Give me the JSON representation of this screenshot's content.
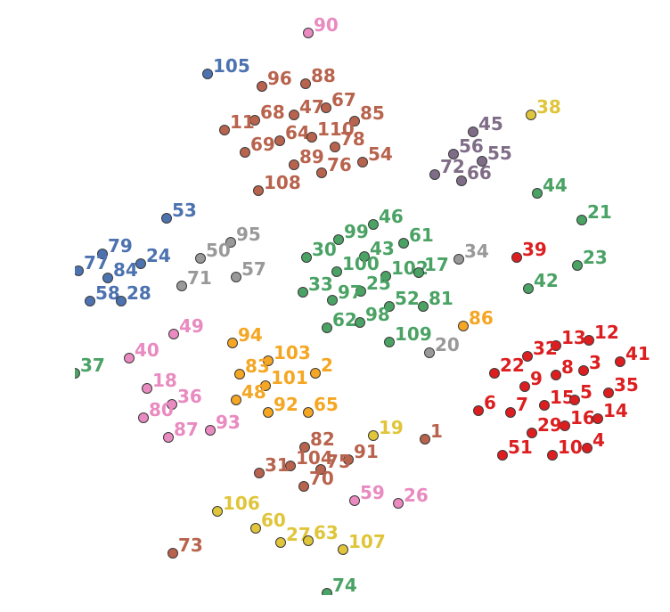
{
  "chart_data": {
    "type": "scatter",
    "title": "",
    "xlabel": "",
    "ylabel": "",
    "xlim": [
      0,
      752
    ],
    "ylim": [
      0,
      687
    ],
    "y_inverted": true,
    "grid": false,
    "axes_visible": false,
    "legend": "none",
    "clusters": {
      "sienna": "#b8634d",
      "blue": "#4c72b0",
      "green": "#4aa264",
      "gray": "#999999",
      "purple": "#7f6d87",
      "red": "#dc1e20",
      "orange": "#f5a623",
      "yellow": "#e0c53a",
      "pink": "#e98ac0"
    },
    "points": [
      {
        "label": "90",
        "x": 346,
        "y": 37,
        "cluster": "pink"
      },
      {
        "label": "105",
        "x": 233,
        "y": 83,
        "cluster": "blue"
      },
      {
        "label": "96",
        "x": 294,
        "y": 97,
        "cluster": "sienna"
      },
      {
        "label": "88",
        "x": 343,
        "y": 94,
        "cluster": "sienna"
      },
      {
        "label": "68",
        "x": 286,
        "y": 135,
        "cluster": "sienna"
      },
      {
        "label": "47",
        "x": 330,
        "y": 129,
        "cluster": "sienna"
      },
      {
        "label": "67",
        "x": 366,
        "y": 121,
        "cluster": "sienna"
      },
      {
        "label": "85",
        "x": 398,
        "y": 136,
        "cluster": "sienna"
      },
      {
        "label": "11",
        "x": 252,
        "y": 146,
        "cluster": "sienna"
      },
      {
        "label": "64",
        "x": 314,
        "y": 158,
        "cluster": "sienna"
      },
      {
        "label": "110",
        "x": 350,
        "y": 154,
        "cluster": "sienna"
      },
      {
        "label": "69",
        "x": 275,
        "y": 171,
        "cluster": "sienna"
      },
      {
        "label": "78",
        "x": 376,
        "y": 165,
        "cluster": "sienna"
      },
      {
        "label": "89",
        "x": 330,
        "y": 185,
        "cluster": "sienna"
      },
      {
        "label": "76",
        "x": 361,
        "y": 194,
        "cluster": "sienna"
      },
      {
        "label": "54",
        "x": 407,
        "y": 182,
        "cluster": "sienna"
      },
      {
        "label": "108",
        "x": 290,
        "y": 214,
        "cluster": "sienna"
      },
      {
        "label": "38",
        "x": 596,
        "y": 129,
        "cluster": "yellow"
      },
      {
        "label": "45",
        "x": 531,
        "y": 148,
        "cluster": "purple"
      },
      {
        "label": "56",
        "x": 509,
        "y": 173,
        "cluster": "purple"
      },
      {
        "label": "55",
        "x": 541,
        "y": 181,
        "cluster": "purple"
      },
      {
        "label": "72",
        "x": 488,
        "y": 196,
        "cluster": "purple"
      },
      {
        "label": "66",
        "x": 518,
        "y": 203,
        "cluster": "purple"
      },
      {
        "label": "44",
        "x": 603,
        "y": 217,
        "cluster": "green"
      },
      {
        "label": "21",
        "x": 653,
        "y": 247,
        "cluster": "green"
      },
      {
        "label": "53",
        "x": 187,
        "y": 245,
        "cluster": "blue"
      },
      {
        "label": "95",
        "x": 259,
        "y": 272,
        "cluster": "gray"
      },
      {
        "label": "50",
        "x": 225,
        "y": 290,
        "cluster": "gray"
      },
      {
        "label": "79",
        "x": 115,
        "y": 285,
        "cluster": "blue"
      },
      {
        "label": "24",
        "x": 158,
        "y": 296,
        "cluster": "blue"
      },
      {
        "label": "77",
        "x": 88,
        "y": 304,
        "cluster": "blue"
      },
      {
        "label": "84",
        "x": 121,
        "y": 312,
        "cluster": "blue"
      },
      {
        "label": "71",
        "x": 204,
        "y": 321,
        "cluster": "gray"
      },
      {
        "label": "57",
        "x": 265,
        "y": 311,
        "cluster": "gray"
      },
      {
        "label": "58",
        "x": 101,
        "y": 338,
        "cluster": "blue"
      },
      {
        "label": "28",
        "x": 136,
        "y": 338,
        "cluster": "blue"
      },
      {
        "label": "46",
        "x": 419,
        "y": 252,
        "cluster": "green"
      },
      {
        "label": "99",
        "x": 380,
        "y": 269,
        "cluster": "green"
      },
      {
        "label": "61",
        "x": 453,
        "y": 273,
        "cluster": "green"
      },
      {
        "label": "30",
        "x": 344,
        "y": 289,
        "cluster": "green"
      },
      {
        "label": "43",
        "x": 409,
        "y": 288,
        "cluster": "green"
      },
      {
        "label": "34",
        "x": 515,
        "y": 291,
        "cluster": "gray"
      },
      {
        "label": "39",
        "x": 580,
        "y": 289,
        "cluster": "red"
      },
      {
        "label": "23",
        "x": 648,
        "y": 298,
        "cluster": "green"
      },
      {
        "label": "100",
        "x": 378,
        "y": 305,
        "cluster": "green"
      },
      {
        "label": "102",
        "x": 433,
        "y": 310,
        "cluster": "green"
      },
      {
        "label": "17",
        "x": 470,
        "y": 306,
        "cluster": "green"
      },
      {
        "label": "33",
        "x": 340,
        "y": 328,
        "cluster": "green"
      },
      {
        "label": "25",
        "x": 405,
        "y": 327,
        "cluster": "green"
      },
      {
        "label": "97",
        "x": 373,
        "y": 337,
        "cluster": "green"
      },
      {
        "label": "42",
        "x": 593,
        "y": 324,
        "cluster": "green"
      },
      {
        "label": "52",
        "x": 437,
        "y": 344,
        "cluster": "green"
      },
      {
        "label": "81",
        "x": 475,
        "y": 344,
        "cluster": "green"
      },
      {
        "label": "62",
        "x": 367,
        "y": 368,
        "cluster": "green"
      },
      {
        "label": "98",
        "x": 404,
        "y": 362,
        "cluster": "green"
      },
      {
        "label": "86",
        "x": 520,
        "y": 366,
        "cluster": "orange"
      },
      {
        "label": "109",
        "x": 437,
        "y": 384,
        "cluster": "green"
      },
      {
        "label": "20",
        "x": 482,
        "y": 396,
        "cluster": "gray"
      },
      {
        "label": "49",
        "x": 195,
        "y": 375,
        "cluster": "pink"
      },
      {
        "label": "94",
        "x": 261,
        "y": 385,
        "cluster": "orange"
      },
      {
        "label": "40",
        "x": 145,
        "y": 402,
        "cluster": "pink"
      },
      {
        "label": "103",
        "x": 301,
        "y": 405,
        "cluster": "orange"
      },
      {
        "label": "37",
        "x": 84,
        "y": 419,
        "cluster": "green"
      },
      {
        "label": "83",
        "x": 269,
        "y": 420,
        "cluster": "orange"
      },
      {
        "label": "2",
        "x": 354,
        "y": 419,
        "cluster": "orange"
      },
      {
        "label": "101",
        "x": 298,
        "y": 433,
        "cluster": "orange"
      },
      {
        "label": "18",
        "x": 165,
        "y": 436,
        "cluster": "pink"
      },
      {
        "label": "36",
        "x": 193,
        "y": 454,
        "cluster": "pink"
      },
      {
        "label": "48",
        "x": 265,
        "y": 449,
        "cluster": "orange"
      },
      {
        "label": "92",
        "x": 301,
        "y": 463,
        "cluster": "orange"
      },
      {
        "label": "65",
        "x": 346,
        "y": 463,
        "cluster": "orange"
      },
      {
        "label": "80",
        "x": 161,
        "y": 469,
        "cluster": "pink"
      },
      {
        "label": "93",
        "x": 236,
        "y": 483,
        "cluster": "pink"
      },
      {
        "label": "87",
        "x": 189,
        "y": 491,
        "cluster": "pink"
      },
      {
        "label": "12",
        "x": 661,
        "y": 382,
        "cluster": "red"
      },
      {
        "label": "13",
        "x": 624,
        "y": 388,
        "cluster": "red"
      },
      {
        "label": "32",
        "x": 592,
        "y": 400,
        "cluster": "red"
      },
      {
        "label": "41",
        "x": 696,
        "y": 406,
        "cluster": "red"
      },
      {
        "label": "22",
        "x": 555,
        "y": 419,
        "cluster": "red"
      },
      {
        "label": "8",
        "x": 624,
        "y": 421,
        "cluster": "red"
      },
      {
        "label": "3",
        "x": 655,
        "y": 416,
        "cluster": "red"
      },
      {
        "label": "9",
        "x": 589,
        "y": 434,
        "cluster": "red"
      },
      {
        "label": "35",
        "x": 683,
        "y": 441,
        "cluster": "red"
      },
      {
        "label": "15",
        "x": 611,
        "y": 455,
        "cluster": "red"
      },
      {
        "label": "5",
        "x": 645,
        "y": 449,
        "cluster": "red"
      },
      {
        "label": "6",
        "x": 537,
        "y": 461,
        "cluster": "red"
      },
      {
        "label": "7",
        "x": 573,
        "y": 463,
        "cluster": "red"
      },
      {
        "label": "16",
        "x": 634,
        "y": 478,
        "cluster": "red"
      },
      {
        "label": "14",
        "x": 671,
        "y": 470,
        "cluster": "red"
      },
      {
        "label": "29",
        "x": 597,
        "y": 486,
        "cluster": "red"
      },
      {
        "label": "51",
        "x": 564,
        "y": 511,
        "cluster": "red"
      },
      {
        "label": "10",
        "x": 620,
        "y": 511,
        "cluster": "red"
      },
      {
        "label": "4",
        "x": 659,
        "y": 503,
        "cluster": "red"
      },
      {
        "label": "19",
        "x": 419,
        "y": 489,
        "cluster": "yellow"
      },
      {
        "label": "1",
        "x": 477,
        "y": 493,
        "cluster": "sienna"
      },
      {
        "label": "82",
        "x": 342,
        "y": 502,
        "cluster": "sienna"
      },
      {
        "label": "91",
        "x": 391,
        "y": 516,
        "cluster": "sienna"
      },
      {
        "label": "104",
        "x": 326,
        "y": 523,
        "cluster": "sienna"
      },
      {
        "label": "75",
        "x": 360,
        "y": 527,
        "cluster": "sienna"
      },
      {
        "label": "31",
        "x": 291,
        "y": 531,
        "cluster": "sienna"
      },
      {
        "label": "70",
        "x": 341,
        "y": 546,
        "cluster": "sienna"
      },
      {
        "label": "59",
        "x": 398,
        "y": 562,
        "cluster": "pink"
      },
      {
        "label": "26",
        "x": 447,
        "y": 565,
        "cluster": "pink"
      },
      {
        "label": "106",
        "x": 244,
        "y": 574,
        "cluster": "yellow"
      },
      {
        "label": "60",
        "x": 287,
        "y": 593,
        "cluster": "yellow"
      },
      {
        "label": "27",
        "x": 315,
        "y": 609,
        "cluster": "yellow"
      },
      {
        "label": "63",
        "x": 346,
        "y": 607,
        "cluster": "yellow"
      },
      {
        "label": "107",
        "x": 385,
        "y": 617,
        "cluster": "yellow"
      },
      {
        "label": "73",
        "x": 194,
        "y": 621,
        "cluster": "sienna"
      },
      {
        "label": "74",
        "x": 367,
        "y": 666,
        "cluster": "green"
      }
    ]
  }
}
